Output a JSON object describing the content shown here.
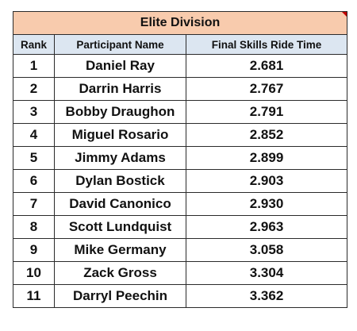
{
  "table": {
    "title": "Elite Division",
    "headers": [
      "Rank",
      "Participant Name",
      "Final Skills Ride Time"
    ],
    "rows": [
      {
        "rank": "1",
        "name": "Daniel Ray",
        "time": "2.681"
      },
      {
        "rank": "2",
        "name": "Darrin Harris",
        "time": "2.767"
      },
      {
        "rank": "3",
        "name": "Bobby Draughon",
        "time": "2.791"
      },
      {
        "rank": "4",
        "name": "Miguel Rosario",
        "time": "2.852"
      },
      {
        "rank": "5",
        "name": "Jimmy Adams",
        "time": "2.899"
      },
      {
        "rank": "6",
        "name": "Dylan Bostick",
        "time": "2.903"
      },
      {
        "rank": "7",
        "name": "David Canonico",
        "time": "2.930"
      },
      {
        "rank": "8",
        "name": "Scott Lundquist",
        "time": "2.963"
      },
      {
        "rank": "9",
        "name": "Mike Germany",
        "time": "3.058"
      },
      {
        "rank": "10",
        "name": "Zack Gross",
        "time": "3.304"
      },
      {
        "rank": "11",
        "name": "Darryl Peechin",
        "time": "3.362"
      }
    ]
  },
  "colors": {
    "title_fill": "#f8cbad",
    "header_fill": "#dce6f1",
    "corner_marker": "#c00000"
  }
}
